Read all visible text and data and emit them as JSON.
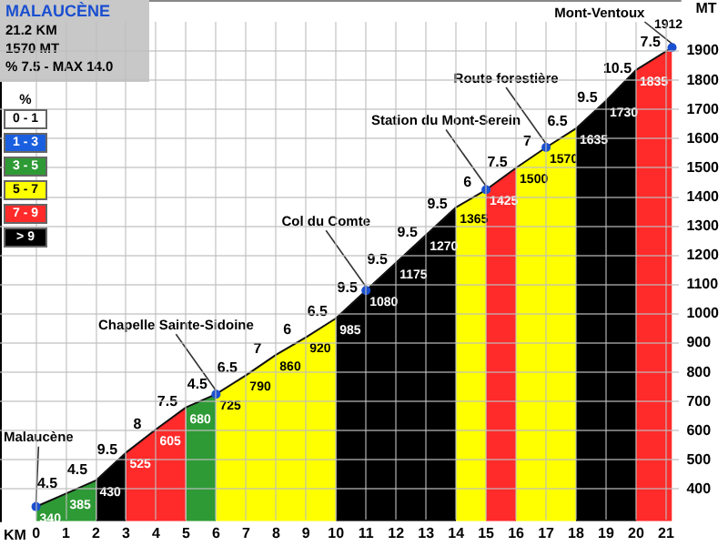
{
  "chart_data": [
    {
      "type": "area",
      "title": "MALAUCÈNE",
      "xlabel": "KM",
      "ylabel": "MT",
      "grid": true,
      "xlim": [
        -1.2,
        21.5
      ],
      "xticks": [
        0,
        1,
        2,
        3,
        4,
        5,
        6,
        7,
        8,
        9,
        10,
        11,
        12,
        13,
        14,
        15,
        16,
        17,
        18,
        19,
        20,
        21
      ],
      "ylim": [
        290,
        2000
      ],
      "yticks": [
        400,
        500,
        600,
        700,
        800,
        900,
        1000,
        1100,
        1200,
        1300,
        1400,
        1500,
        1600,
        1700,
        1800,
        1900
      ],
      "series": [
        {
          "color": "#2e9a35",
          "x": [
            0,
            1,
            2
          ],
          "values": [
            340,
            385,
            430
          ],
          "value_labels": [
            "340",
            "385",
            null
          ]
        },
        {
          "color": "#000000",
          "x": [
            2,
            3
          ],
          "values": [
            430,
            525
          ],
          "value_labels": [
            "430",
            null
          ]
        },
        {
          "color": "#ff2a2a",
          "x": [
            3,
            4,
            5
          ],
          "values": [
            525,
            605,
            680
          ],
          "value_labels": [
            "525",
            "605",
            null
          ]
        },
        {
          "color": "#2e9a35",
          "x": [
            5,
            6
          ],
          "values": [
            680,
            725
          ],
          "value_labels": [
            "680",
            null
          ]
        },
        {
          "color": "#ffff00",
          "x": [
            6,
            7,
            8,
            9,
            10
          ],
          "values": [
            725,
            790,
            860,
            920,
            985
          ],
          "value_labels": [
            "725",
            "790",
            "860",
            "920",
            null
          ]
        },
        {
          "color": "#000000",
          "x": [
            10,
            11,
            12,
            13,
            14
          ],
          "values": [
            985,
            1080,
            1175,
            1270,
            1365
          ],
          "value_labels": [
            "985",
            "1080",
            "1175",
            "1270",
            null
          ]
        },
        {
          "color": "#ffff00",
          "x": [
            14,
            15
          ],
          "values": [
            1365,
            1425
          ],
          "value_labels": [
            "1365",
            null
          ]
        },
        {
          "color": "#ff2a2a",
          "x": [
            15,
            16
          ],
          "values": [
            1425,
            1500
          ],
          "value_labels": [
            "1425",
            null
          ]
        },
        {
          "color": "#ffff00",
          "x": [
            16,
            17,
            18
          ],
          "values": [
            1500,
            1570,
            1635
          ],
          "value_labels": [
            "1500",
            "1570",
            null
          ]
        },
        {
          "color": "#000000",
          "x": [
            18,
            19,
            20
          ],
          "values": [
            1635,
            1730,
            1835
          ],
          "value_labels": [
            "1635",
            "1730",
            null
          ]
        },
        {
          "color": "#ff2a2a",
          "x": [
            20,
            21.2
          ],
          "values": [
            1835,
            1912
          ],
          "value_labels": [
            "1835",
            "1912"
          ]
        }
      ],
      "annotations": [
        "21.2 KM",
        "1570 MT",
        "% 7.5 - MAX 14.0",
        {
          "text": "Malaucène",
          "x": 0,
          "y": 340
        },
        {
          "text": "Chapelle Sainte-Sidoine",
          "x": 6,
          "y": 725
        },
        {
          "text": "Col du Comte",
          "x": 11,
          "y": 1080
        },
        {
          "text": "Station du Mont-Serein",
          "x": 15,
          "y": 1425
        },
        {
          "text": "Route forestière",
          "x": 17,
          "y": 1570
        },
        {
          "text": "Mont-Ventoux",
          "x": 21.2,
          "y": 1912
        },
        {
          "text": "4.5",
          "x": 0.5,
          "y": 362.5
        },
        {
          "text": "4.5",
          "x": 1.5,
          "y": 407.5
        },
        {
          "text": "9.5",
          "x": 2.5,
          "y": 477.5
        },
        {
          "text": "8",
          "x": 3.5,
          "y": 565
        },
        {
          "text": "7.5",
          "x": 4.5,
          "y": 642.5
        },
        {
          "text": "4.5",
          "x": 5.5,
          "y": 702.5
        },
        {
          "text": "6.5",
          "x": 6.5,
          "y": 757.5
        },
        {
          "text": "7",
          "x": 7.5,
          "y": 825
        },
        {
          "text": "6",
          "x": 8.5,
          "y": 890
        },
        {
          "text": "6.5",
          "x": 9.5,
          "y": 952.5
        },
        {
          "text": "9.5",
          "x": 10.5,
          "y": 1032.5
        },
        {
          "text": "9.5",
          "x": 11.5,
          "y": 1127.5
        },
        {
          "text": "9.5",
          "x": 12.5,
          "y": 1222.5
        },
        {
          "text": "9.5",
          "x": 13.5,
          "y": 1317.5
        },
        {
          "text": "6",
          "x": 14.5,
          "y": 1395
        },
        {
          "text": "7.5",
          "x": 15.5,
          "y": 1462.5
        },
        {
          "text": "7",
          "x": 16.5,
          "y": 1535
        },
        {
          "text": "6.5",
          "x": 17.5,
          "y": 1602.5
        },
        {
          "text": "9.5",
          "x": 18.5,
          "y": 1682.5
        },
        {
          "text": "10.5",
          "x": 19.5,
          "y": 1782.5
        },
        {
          "text": "7.5",
          "x": 20.6,
          "y": 1873.5
        }
      ]
    },
    {
      "type": "other",
      "legend_title": "%",
      "categories": [
        "0 - 1",
        "1 - 3",
        "3 - 5",
        "5 - 7",
        "7 - 9",
        "> 9"
      ],
      "colors": [
        "#ffffff",
        "#1a5fe0",
        "#2e9a35",
        "#ffff00",
        "#ff2a2a",
        "#000000"
      ]
    }
  ]
}
